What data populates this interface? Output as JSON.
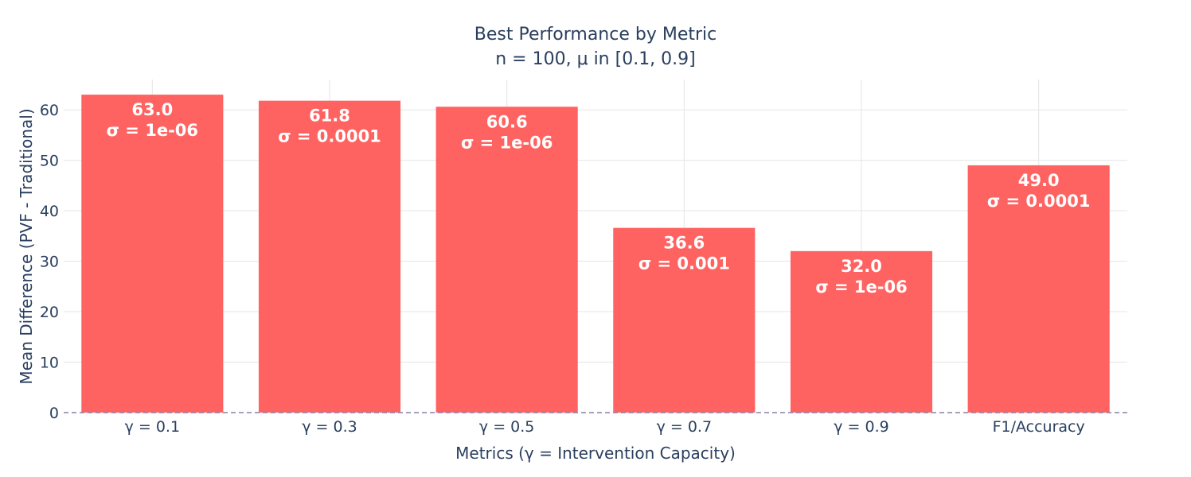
{
  "chart_data": {
    "type": "bar",
    "title": "Best Performance by Metric",
    "subtitle": "n = 100, μ in [0.1, 0.9]",
    "xlabel": "Metrics (γ = Intervention Capacity)",
    "ylabel": "Mean Difference (PVF - Traditional)",
    "categories": [
      "γ = 0.1",
      "γ = 0.3",
      "γ = 0.5",
      "γ = 0.7",
      "γ = 0.9",
      "F1/Accuracy"
    ],
    "values": [
      63.0,
      61.8,
      60.6,
      36.6,
      32.0,
      49.0
    ],
    "value_labels": [
      "63.0",
      "61.8",
      "60.6",
      "36.6",
      "32.0",
      "49.0"
    ],
    "sigma_labels": [
      "σ = 1e-06",
      "σ = 0.0001",
      "σ = 1e-06",
      "σ = 0.001",
      "σ = 1e-06",
      "σ = 0.0001"
    ],
    "ylim": [
      0,
      66
    ],
    "yticks": [
      0,
      10,
      20,
      30,
      40,
      50,
      60
    ],
    "grid": true,
    "legend": "none",
    "bar_color": "#ff6361",
    "zero_line_color": "#8c7fa8"
  }
}
